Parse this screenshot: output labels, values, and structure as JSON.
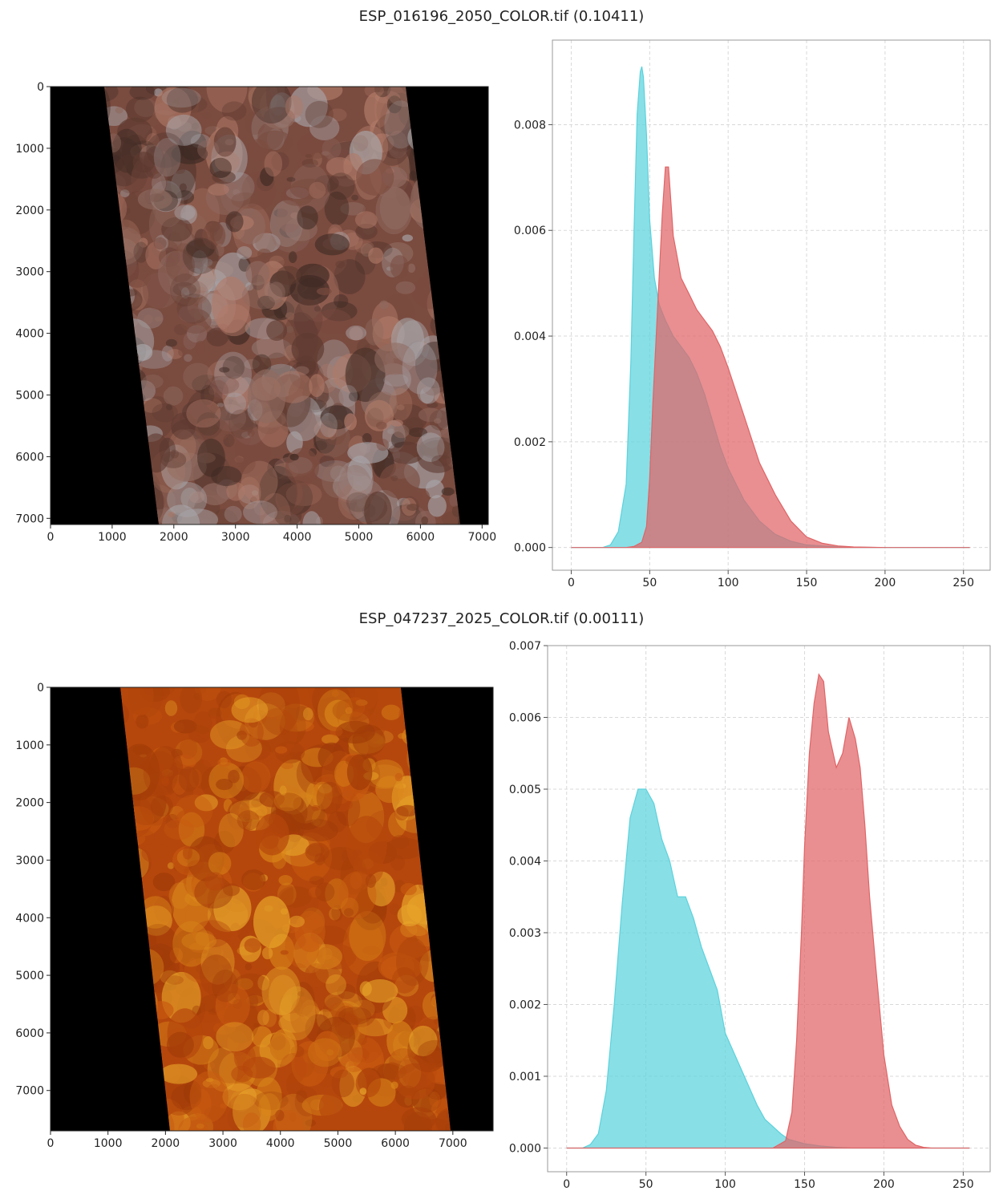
{
  "figures": [
    {
      "title": "ESP_016196_2050_COLOR.tif (0.10411)",
      "image_axes": {
        "x_ticks": [
          "0",
          "1000",
          "2000",
          "3000",
          "4000",
          "5000",
          "6000",
          "7000"
        ],
        "y_ticks": [
          "0",
          "1000",
          "2000",
          "3000",
          "4000",
          "5000",
          "6000",
          "7000"
        ]
      },
      "palette": [
        "#7a4b3f",
        "#5e3a30",
        "#8f6a60",
        "#a9a6aa",
        "#3e2a24",
        "#b07a68"
      ]
    },
    {
      "title": "ESP_047237_2025_COLOR.tif (0.00111)",
      "image_axes": {
        "x_ticks": [
          "0",
          "1000",
          "2000",
          "3000",
          "4000",
          "5000",
          "6000",
          "7000"
        ],
        "y_ticks": [
          "0",
          "1000",
          "2000",
          "3000",
          "4000",
          "5000",
          "6000",
          "7000"
        ]
      },
      "palette": [
        "#b5470c",
        "#c85a10",
        "#9e3a08",
        "#d9861a",
        "#e8a52a",
        "#a8400a"
      ]
    }
  ],
  "chart_data": [
    {
      "type": "area",
      "title": "ESP_016196_2050_COLOR.tif (0.10411)",
      "xlim": [
        -12,
        267
      ],
      "ylim": [
        -0.00043,
        0.0096
      ],
      "x_ticks": [
        0,
        50,
        100,
        150,
        200,
        250
      ],
      "y_ticks": [
        0.0,
        0.002,
        0.004,
        0.006,
        0.008
      ],
      "y_tick_labels": [
        "0.000",
        "0.002",
        "0.004",
        "0.006",
        "0.008"
      ],
      "grid": true,
      "colors": {
        "cyan": "#5bd2dc",
        "red": "#e06466"
      },
      "series": [
        {
          "color": "cyan",
          "x": [
            0,
            20,
            25,
            30,
            35,
            38,
            40,
            42,
            44,
            45,
            46,
            48,
            50,
            53,
            56,
            60,
            65,
            70,
            75,
            80,
            85,
            90,
            95,
            100,
            110,
            120,
            130,
            140,
            150,
            170,
            200,
            254
          ],
          "y": [
            0,
            0,
            5e-05,
            0.0003,
            0.0012,
            0.0035,
            0.006,
            0.0082,
            0.009,
            0.0091,
            0.0089,
            0.0078,
            0.0062,
            0.0051,
            0.0046,
            0.0043,
            0.004,
            0.0038,
            0.0036,
            0.0033,
            0.0029,
            0.0024,
            0.0019,
            0.0015,
            0.0009,
            0.0005,
            0.00025,
            0.00012,
            5e-05,
            1e-05,
            0,
            0
          ]
        },
        {
          "color": "red",
          "x": [
            0,
            35,
            40,
            45,
            48,
            50,
            52,
            55,
            58,
            60,
            62,
            65,
            70,
            75,
            80,
            85,
            90,
            95,
            100,
            110,
            120,
            130,
            140,
            150,
            160,
            170,
            180,
            200,
            254
          ],
          "y": [
            0,
            0,
            2e-05,
            0.0001,
            0.0004,
            0.0013,
            0.0027,
            0.0045,
            0.0063,
            0.0072,
            0.0072,
            0.0059,
            0.0051,
            0.0048,
            0.0045,
            0.0043,
            0.0041,
            0.0038,
            0.0034,
            0.0025,
            0.0016,
            0.001,
            0.0005,
            0.0002,
            8e-05,
            3e-05,
            1e-05,
            0,
            0
          ]
        }
      ]
    },
    {
      "type": "area",
      "title": "ESP_047237_2025_COLOR.tif (0.00111)",
      "xlim": [
        -12,
        267
      ],
      "ylim": [
        -0.00033,
        0.007
      ],
      "x_ticks": [
        0,
        50,
        100,
        150,
        200,
        250
      ],
      "y_ticks": [
        0.0,
        0.001,
        0.002,
        0.003,
        0.004,
        0.005,
        0.006,
        0.007
      ],
      "y_tick_labels": [
        "0.000",
        "0.001",
        "0.002",
        "0.003",
        "0.004",
        "0.005",
        "0.006",
        "0.007"
      ],
      "grid": true,
      "colors": {
        "cyan": "#5bd2dc",
        "red": "#e06466"
      },
      "series": [
        {
          "color": "cyan",
          "x": [
            0,
            10,
            15,
            20,
            25,
            30,
            35,
            40,
            45,
            50,
            55,
            60,
            65,
            70,
            75,
            80,
            85,
            90,
            95,
            100,
            110,
            120,
            125,
            130,
            135,
            140,
            150,
            160,
            170,
            180,
            200,
            254
          ],
          "y": [
            0,
            0,
            5e-05,
            0.0002,
            0.0008,
            0.002,
            0.0034,
            0.0046,
            0.005,
            0.005,
            0.0048,
            0.0043,
            0.004,
            0.0035,
            0.0035,
            0.0032,
            0.0028,
            0.0025,
            0.0022,
            0.0016,
            0.0011,
            0.0006,
            0.0004,
            0.0003,
            0.0002,
            0.00012,
            6e-05,
            3e-05,
            1e-05,
            0,
            0,
            0
          ]
        },
        {
          "color": "red",
          "x": [
            0,
            130,
            138,
            142,
            145,
            148,
            150,
            153,
            156,
            159,
            162,
            165,
            170,
            174,
            178,
            182,
            185,
            188,
            191,
            195,
            200,
            205,
            210,
            215,
            220,
            225,
            230,
            254
          ],
          "y": [
            0,
            0,
            0.0001,
            0.0005,
            0.0015,
            0.003,
            0.0042,
            0.0055,
            0.0062,
            0.0066,
            0.0065,
            0.0058,
            0.0053,
            0.0055,
            0.006,
            0.0057,
            0.0053,
            0.0045,
            0.0035,
            0.0025,
            0.0013,
            0.0006,
            0.0003,
            0.00012,
            4e-05,
            1e-05,
            0,
            0
          ]
        }
      ]
    }
  ]
}
